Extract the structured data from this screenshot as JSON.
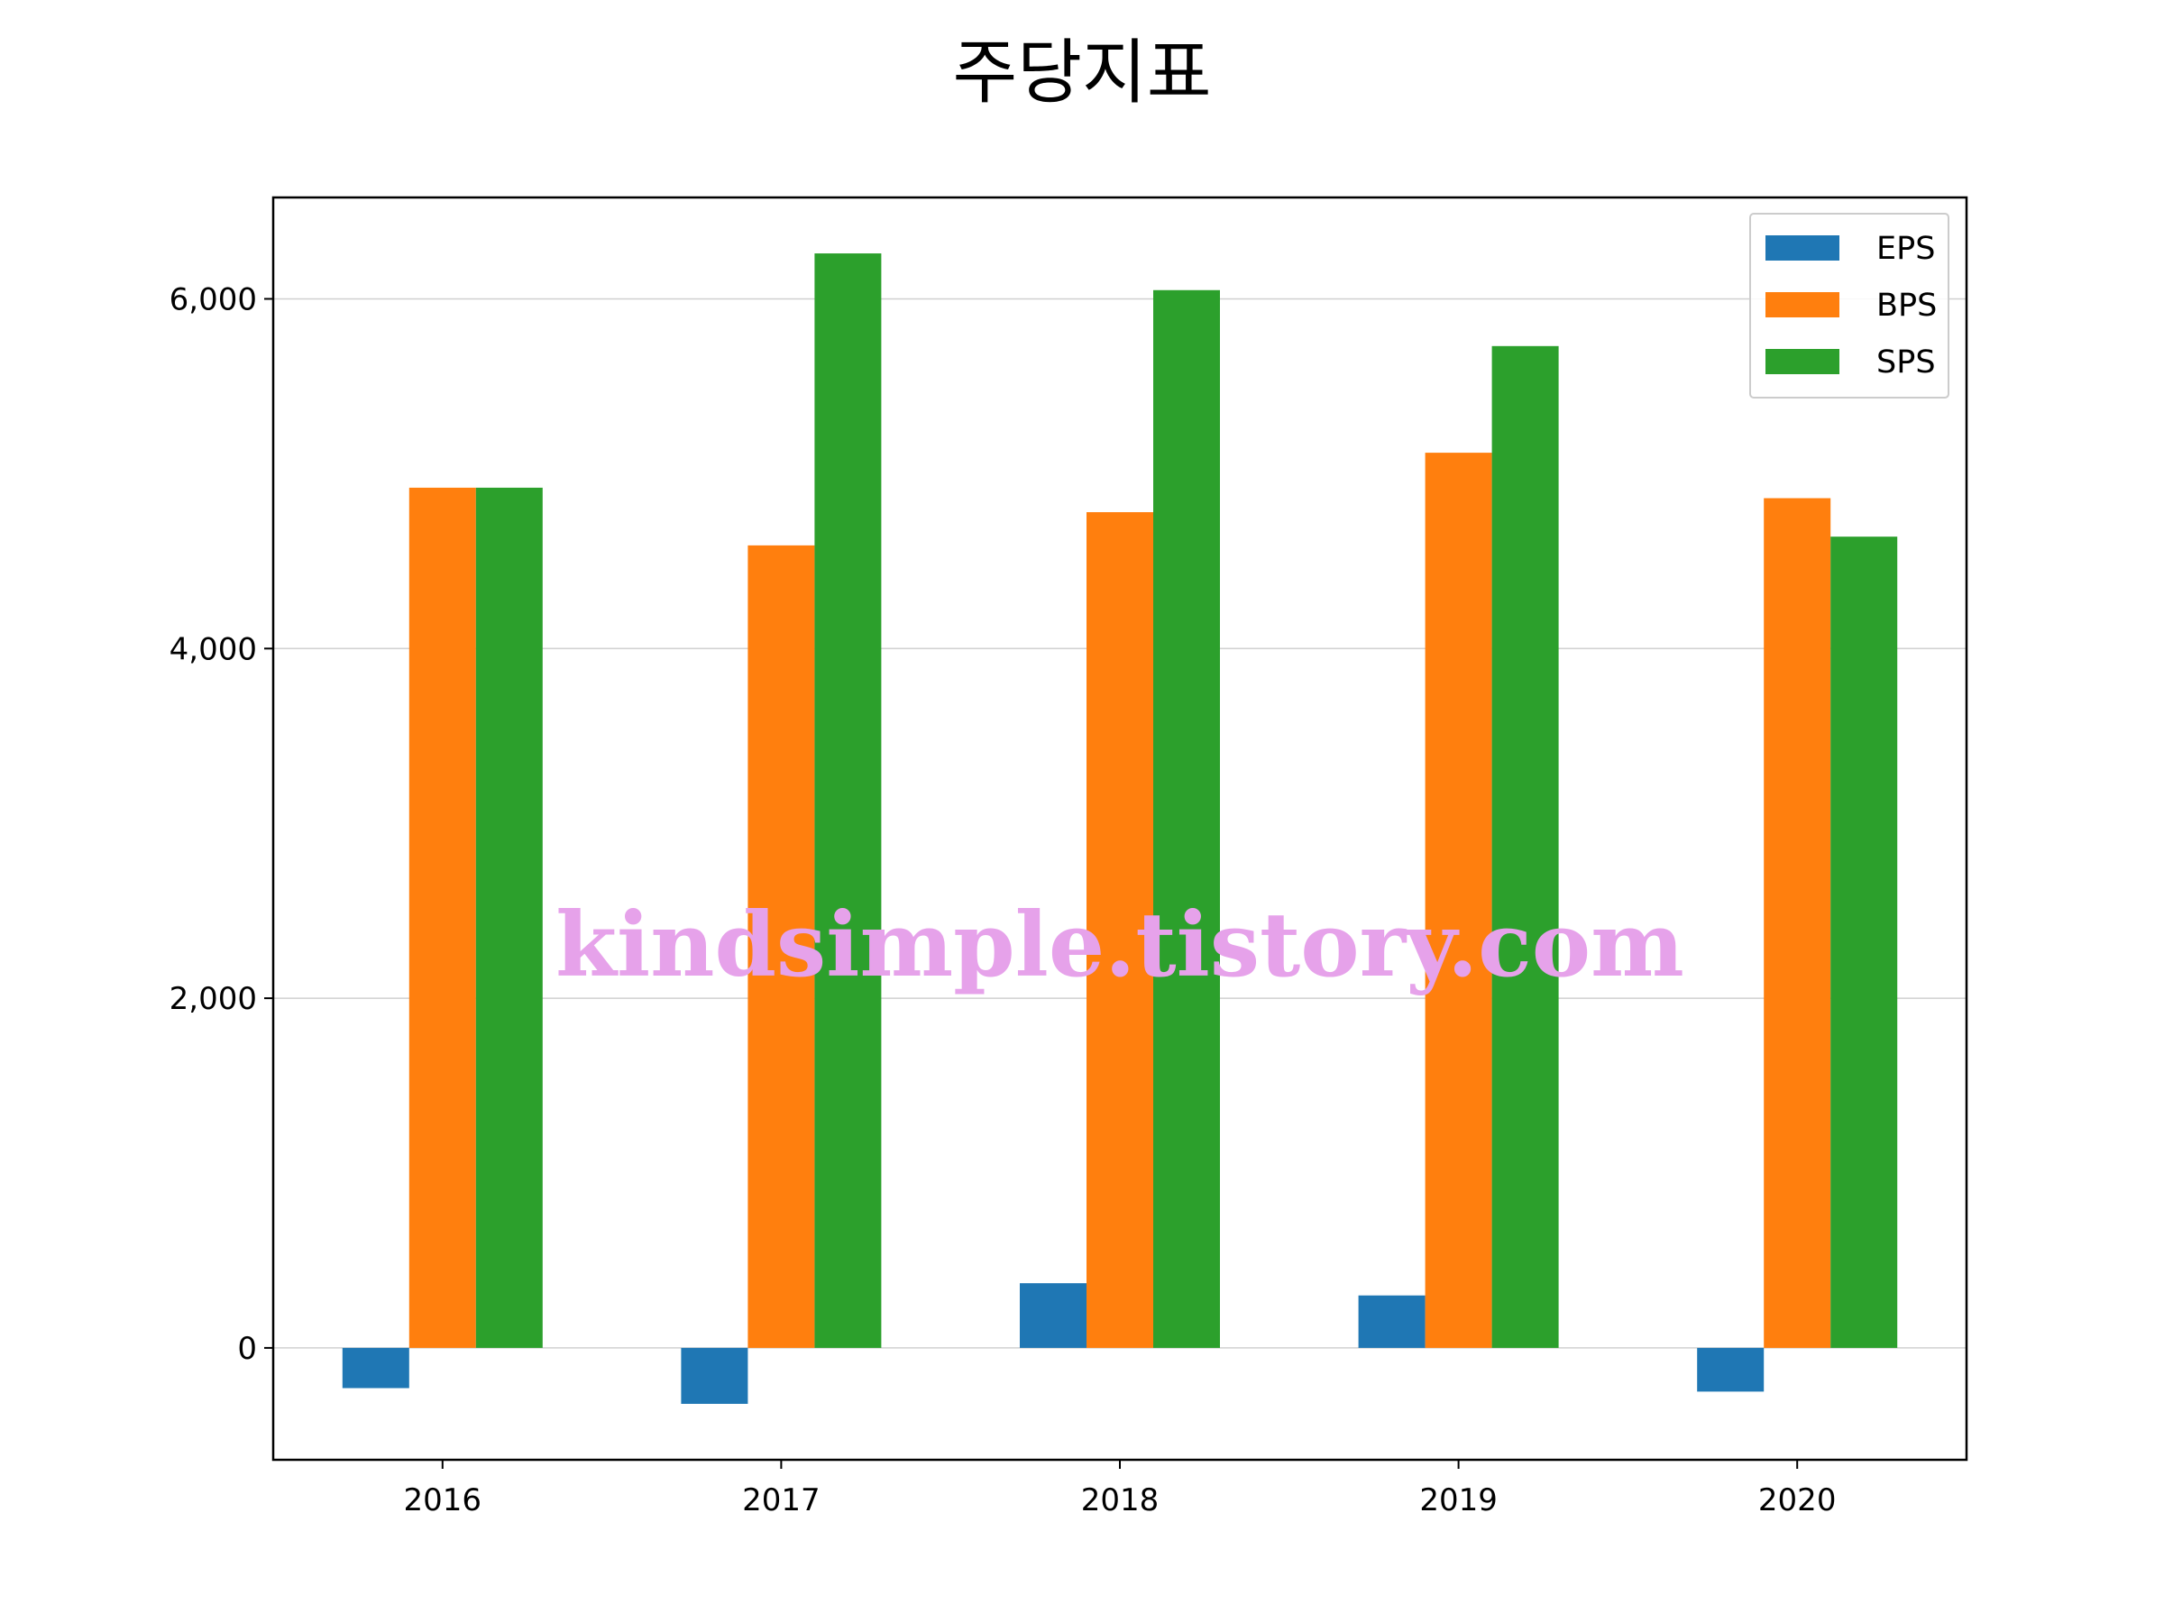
{
  "chart_data": {
    "type": "bar",
    "title": "주당지표",
    "categories": [
      "2016",
      "2017",
      "2018",
      "2019",
      "2020"
    ],
    "series": [
      {
        "name": "EPS",
        "color": "#1f77b4",
        "values": [
          -230,
          -320,
          370,
          300,
          -250
        ]
      },
      {
        "name": "BPS",
        "color": "#ff7f0e",
        "values": [
          4920,
          4590,
          4780,
          5120,
          4860
        ]
      },
      {
        "name": "SPS",
        "color": "#2ca02c",
        "values": [
          4920,
          6260,
          6050,
          5730,
          4640
        ]
      }
    ],
    "ylim": [
      -640,
      6580
    ],
    "yticks": [
      0,
      2000,
      4000,
      6000
    ],
    "ytick_labels": [
      "0",
      "2,000",
      "4,000",
      "6,000"
    ],
    "grid": "horizontal",
    "legend_position": "top-right",
    "xlabel": "",
    "ylabel": ""
  },
  "watermark": "kindsimple.tistory.com"
}
